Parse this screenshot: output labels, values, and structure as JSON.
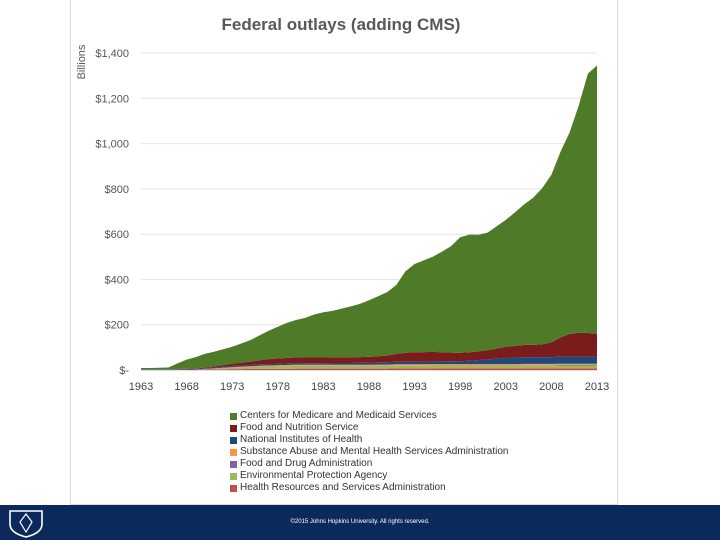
{
  "chart_data": {
    "type": "area",
    "stacked": true,
    "title": "Federal outlays (adding CMS)",
    "ylabel": "Billions",
    "xlabel": "",
    "ylim": [
      0,
      1400
    ],
    "xlim": [
      1963,
      2013
    ],
    "y_tick_values": [
      0,
      200,
      400,
      600,
      800,
      1000,
      1200,
      1400
    ],
    "y_tick_labels": [
      "$-",
      "$200",
      "$400",
      "$600",
      "$800",
      "$1,000",
      "$1,200",
      "$1,400"
    ],
    "x_tick_labels": [
      "1963",
      "1968",
      "1973",
      "1978",
      "1983",
      "1988",
      "1993",
      "1998",
      "2003",
      "2008",
      "2013"
    ],
    "x": [
      1963,
      1964,
      1965,
      1966,
      1967,
      1968,
      1969,
      1970,
      1971,
      1972,
      1973,
      1974,
      1975,
      1976,
      1977,
      1978,
      1979,
      1980,
      1981,
      1982,
      1983,
      1984,
      1985,
      1986,
      1987,
      1988,
      1989,
      1990,
      1991,
      1992,
      1993,
      1994,
      1995,
      1996,
      1997,
      1998,
      1999,
      2000,
      2001,
      2002,
      2003,
      2004,
      2005,
      2006,
      2007,
      2008,
      2009,
      2010,
      2011,
      2012,
      2013
    ],
    "series": [
      {
        "name": "Health Resources and Services Administration",
        "color": "#c0504d",
        "values": [
          0,
          0,
          0,
          0,
          0,
          1,
          1,
          2,
          2,
          3,
          4,
          4,
          5,
          5,
          5,
          5,
          5,
          6,
          6,
          6,
          6,
          6,
          6,
          6,
          6,
          6,
          6,
          6,
          7,
          7,
          7,
          7,
          8,
          8,
          8,
          8,
          8,
          8,
          8,
          8,
          8,
          8,
          8,
          8,
          8,
          8,
          8,
          8,
          8,
          8,
          8
        ]
      },
      {
        "name": "Environmental Protection Agency",
        "color": "#9bbb59",
        "values": [
          0,
          0,
          0,
          0,
          0,
          0,
          0,
          1,
          2,
          3,
          4,
          5,
          6,
          8,
          9,
          10,
          11,
          12,
          11,
          11,
          11,
          11,
          11,
          11,
          11,
          11,
          11,
          11,
          11,
          11,
          11,
          11,
          11,
          11,
          11,
          11,
          11,
          11,
          11,
          11,
          11,
          11,
          11,
          11,
          11,
          11,
          12,
          12,
          12,
          12,
          12
        ]
      },
      {
        "name": "Food and Drug Administration",
        "color": "#8064a2",
        "values": [
          1,
          1,
          1,
          1,
          1,
          1,
          1,
          1,
          1,
          1,
          1,
          1,
          1,
          1,
          1,
          1,
          1,
          1,
          1,
          1,
          1,
          1,
          1,
          1,
          1,
          1,
          1,
          1,
          1,
          1,
          1,
          1,
          1,
          1,
          1,
          1,
          1,
          1,
          1,
          1,
          1,
          1,
          2,
          2,
          2,
          2,
          2,
          2,
          2,
          2,
          2
        ]
      },
      {
        "name": "Substance Abuse and Mental Health Services Administration",
        "color": "#f79646",
        "values": [
          0,
          0,
          0,
          0,
          0,
          0,
          0,
          1,
          2,
          3,
          4,
          5,
          5,
          5,
          5,
          5,
          5,
          5,
          5,
          5,
          5,
          5,
          5,
          5,
          5,
          5,
          6,
          6,
          6,
          6,
          6,
          6,
          6,
          6,
          6,
          6,
          6,
          6,
          6,
          6,
          6,
          6,
          6,
          6,
          6,
          6,
          6,
          6,
          6,
          6,
          6
        ]
      },
      {
        "name": "National Institutes of Health",
        "color": "#1f497d",
        "values": [
          2,
          2,
          2,
          2,
          2,
          3,
          3,
          3,
          4,
          4,
          5,
          5,
          5,
          6,
          6,
          6,
          7,
          7,
          7,
          7,
          7,
          8,
          8,
          8,
          9,
          9,
          10,
          10,
          11,
          11,
          11,
          12,
          12,
          12,
          13,
          13,
          15,
          18,
          21,
          24,
          27,
          28,
          29,
          29,
          29,
          30,
          31,
          31,
          31,
          31,
          30
        ]
      },
      {
        "name": "Food and Nutrition Service",
        "color": "#7b1c1c",
        "values": [
          1,
          1,
          1,
          1,
          1,
          1,
          2,
          3,
          5,
          8,
          10,
          12,
          15,
          18,
          22,
          24,
          24,
          25,
          25,
          25,
          25,
          25,
          25,
          25,
          25,
          26,
          27,
          30,
          35,
          40,
          42,
          42,
          42,
          40,
          38,
          37,
          37,
          38,
          40,
          45,
          50,
          52,
          55,
          55,
          58,
          65,
          85,
          100,
          105,
          105,
          102
        ]
      },
      {
        "name": "Centers for Medicare and Medicaid Services",
        "color": "#4f7a28",
        "values": [
          5,
          5,
          6,
          7,
          25,
          40,
          50,
          60,
          65,
          70,
          75,
          85,
          95,
          110,
          125,
          140,
          155,
          165,
          175,
          190,
          200,
          205,
          215,
          225,
          235,
          250,
          265,
          280,
          305,
          360,
          390,
          405,
          420,
          445,
          470,
          510,
          520,
          515,
          520,
          540,
          560,
          590,
          620,
          650,
          690,
          740,
          820,
          890,
          1005,
          1145,
          1185
        ]
      }
    ]
  },
  "footer": {
    "copyright": "©2015 Johns Hopkins University. All rights reserved."
  }
}
